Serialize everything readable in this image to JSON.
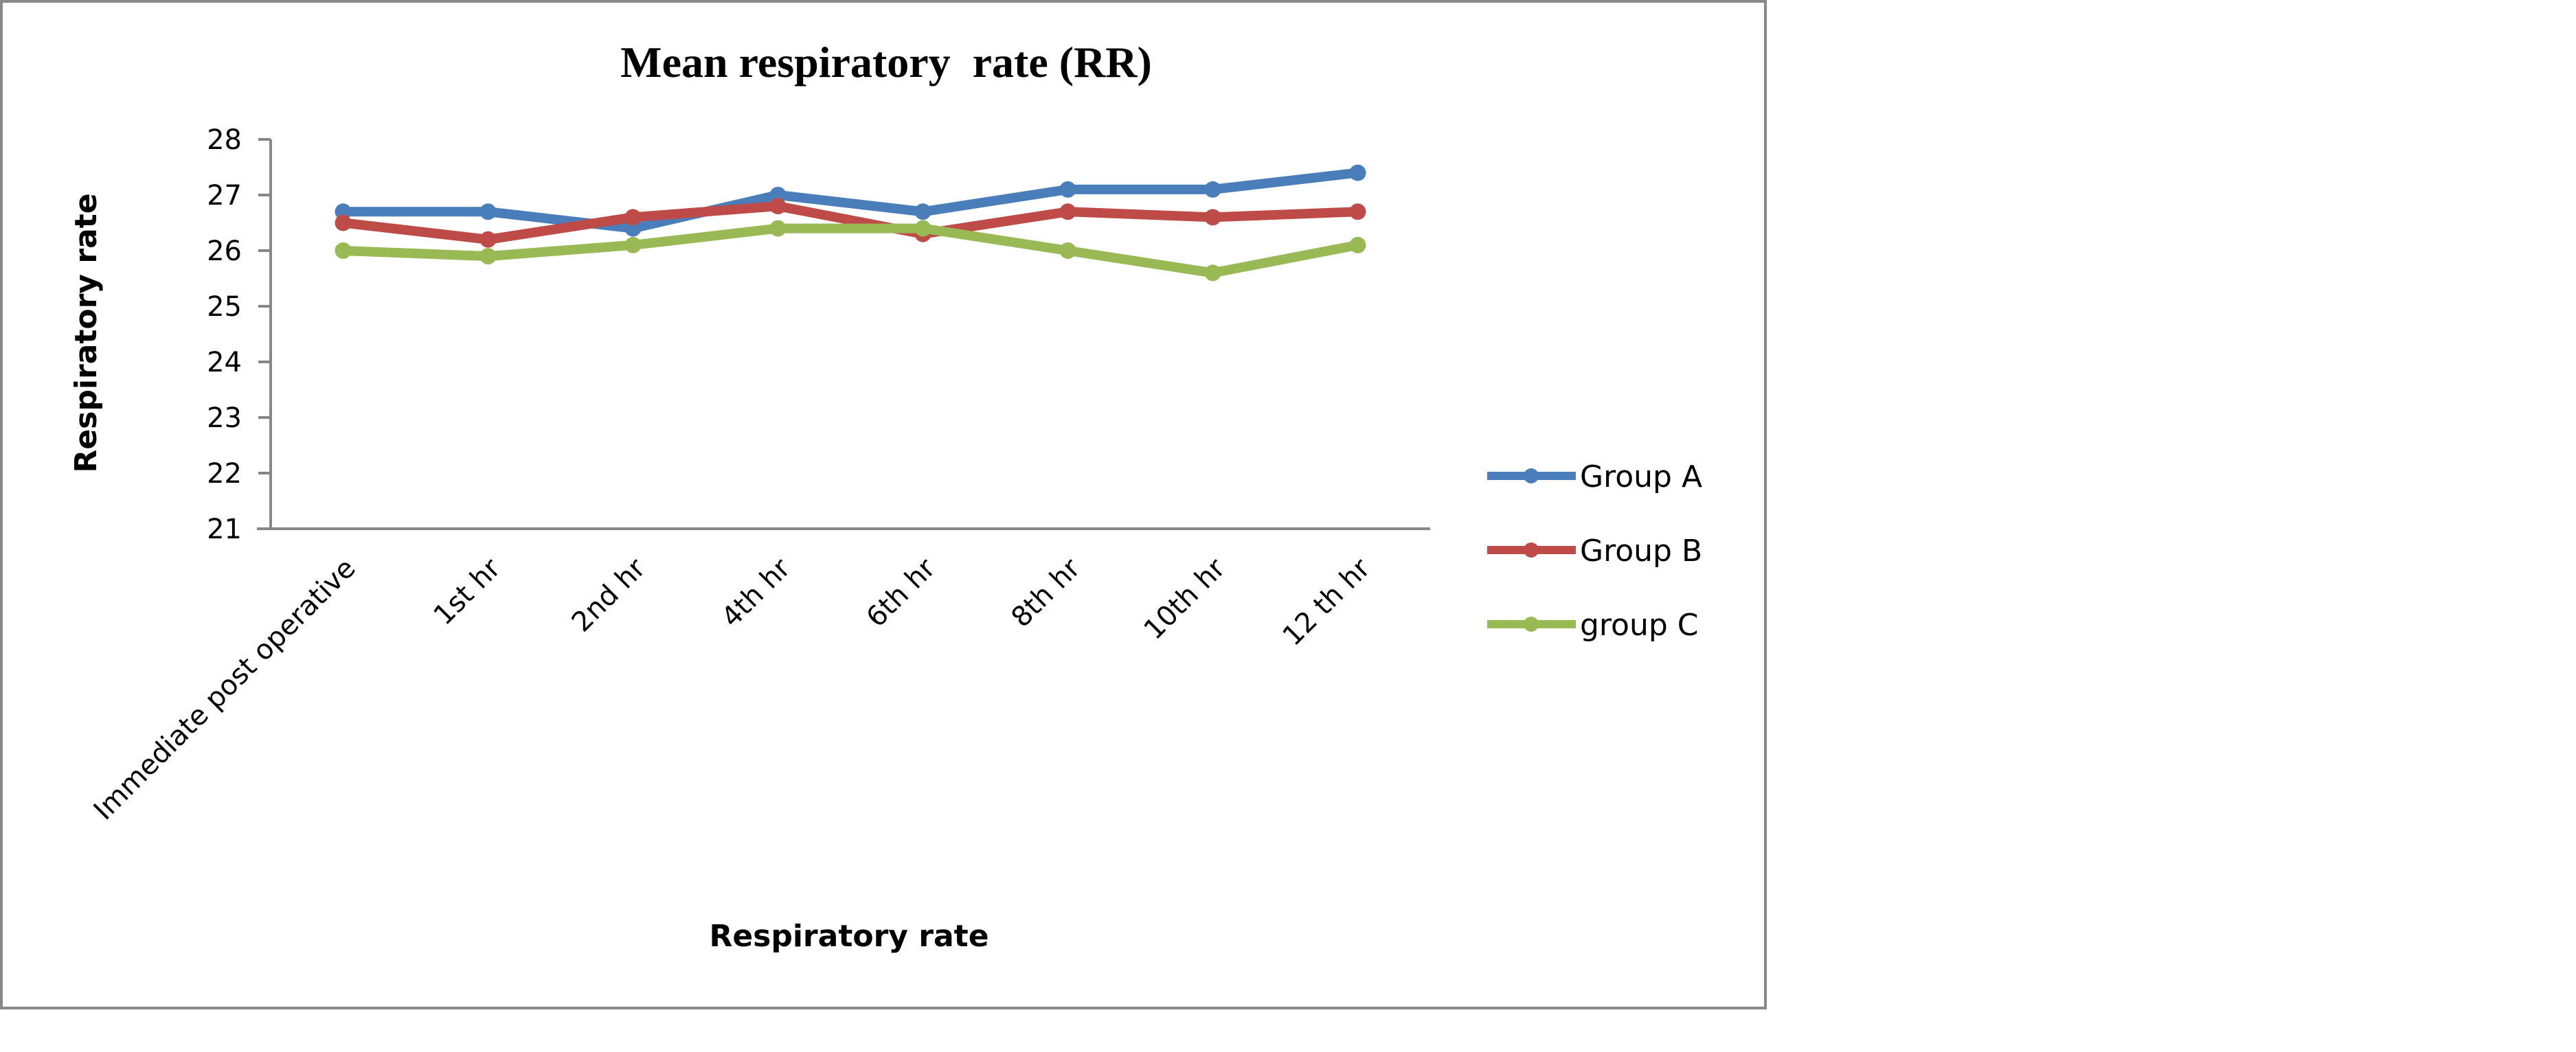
{
  "chart_data": {
    "type": "line",
    "title": "Mean respiratory  rate (RR)",
    "xlabel": "Respiratory rate",
    "ylabel": "Respiratory rate",
    "ylim": [
      21,
      28
    ],
    "yticks": [
      "21",
      "22",
      "23",
      "24",
      "25",
      "26",
      "27",
      "28"
    ],
    "categories": [
      "Immediate post operative",
      "1st hr",
      "2nd hr",
      "4th hr",
      "6th hr",
      "8th hr",
      "10th hr",
      "12 th hr"
    ],
    "grid": false,
    "legend_position": "right",
    "series": [
      {
        "name": "Group A",
        "color": "#4a7ebb",
        "values": [
          26.7,
          26.7,
          26.4,
          27.0,
          26.7,
          27.1,
          27.1,
          27.4
        ]
      },
      {
        "name": "Group B",
        "color": "#be4b48",
        "values": [
          26.5,
          26.2,
          26.6,
          26.8,
          26.3,
          26.7,
          26.6,
          26.7
        ]
      },
      {
        "name": "group C",
        "color": "#98b954",
        "values": [
          26.0,
          25.9,
          26.1,
          26.4,
          26.4,
          26.0,
          25.6,
          26.1
        ]
      }
    ]
  }
}
